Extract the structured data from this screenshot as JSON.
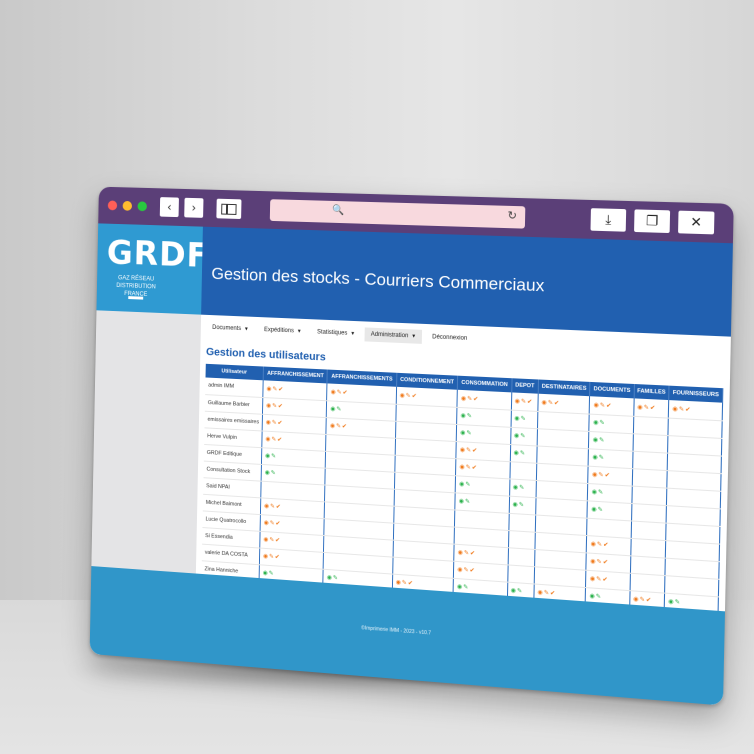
{
  "browser": {
    "back_icon": "‹",
    "forward_icon": "›",
    "search_icon": "🔍",
    "reload_icon": "↻",
    "download_icon": "⤓",
    "window_icon": "❐",
    "close_icon": "✕"
  },
  "brand": {
    "logo": "GRDF",
    "logo_subtitle": "GAZ RÉSEAU DISTRIBUTION FRANCE",
    "primary_color": "#2160b0",
    "accent_color": "#2f9ad2"
  },
  "header": {
    "title": "Gestion des stocks - Courriers Commerciaux"
  },
  "menu": {
    "items": [
      {
        "label": "Documents"
      },
      {
        "label": "Expéditions"
      },
      {
        "label": "Statistiques"
      },
      {
        "label": "Administration"
      },
      {
        "label": "Déconnexion"
      }
    ]
  },
  "section": {
    "title": "Gestion des utilisateurs"
  },
  "table": {
    "headers": [
      "Utilisateur",
      "AFFRANCHISSEMENT",
      "AFFRANCHISSEMENTS",
      "CONDITIONNEMENT",
      "CONSOMMATION",
      "DEPOT",
      "DESTINATAIRES",
      "DOCUMENTS",
      "FAMILLES",
      "FOURNISSEURS"
    ],
    "rows": [
      {
        "user": "admin IMM",
        "cells": [
          "o",
          "o",
          "o",
          "o",
          "o",
          "o",
          "o",
          "o",
          "o"
        ]
      },
      {
        "user": "Guillaume Barbier",
        "cells": [
          "o",
          "g",
          "",
          "g",
          "g",
          "",
          "g",
          "",
          ""
        ]
      },
      {
        "user": "emissaires emissaires",
        "cells": [
          "o",
          "o",
          "",
          "g",
          "g",
          "",
          "g",
          "",
          ""
        ]
      },
      {
        "user": "Herve Vulpin",
        "cells": [
          "o",
          "",
          "",
          "o",
          "g",
          "",
          "g",
          "",
          ""
        ]
      },
      {
        "user": "GRDF Editique",
        "cells": [
          "g",
          "",
          "",
          "o",
          "",
          "",
          "o",
          "",
          ""
        ]
      },
      {
        "user": "Consultation Stock",
        "cells": [
          "g",
          "",
          "",
          "g",
          "g",
          "",
          "g",
          "",
          ""
        ]
      },
      {
        "user": "Said NPAI",
        "cells": [
          "",
          "",
          "",
          "g",
          "g",
          "",
          "g",
          "",
          ""
        ]
      },
      {
        "user": "Michel Baimont",
        "cells": [
          "o",
          "",
          "",
          "",
          "",
          "",
          "",
          "",
          ""
        ]
      },
      {
        "user": "Lucie Quatrocollo",
        "cells": [
          "o",
          "",
          "",
          "",
          "",
          "",
          "o",
          "",
          ""
        ]
      },
      {
        "user": "Si Essendia",
        "cells": [
          "o",
          "",
          "",
          "o",
          "",
          "",
          "o",
          "",
          ""
        ]
      },
      {
        "user": "valerie DA COSTA",
        "cells": [
          "o",
          "",
          "",
          "o",
          "",
          "",
          "o",
          "",
          ""
        ]
      },
      {
        "user": "Zina Hanniche",
        "cells": [
          "g",
          "g",
          "o",
          "g",
          "g",
          "o",
          "g",
          "o",
          "g"
        ]
      }
    ]
  },
  "footer": {
    "text": "©Imprimerie IMM - 2023 - v10.7"
  }
}
